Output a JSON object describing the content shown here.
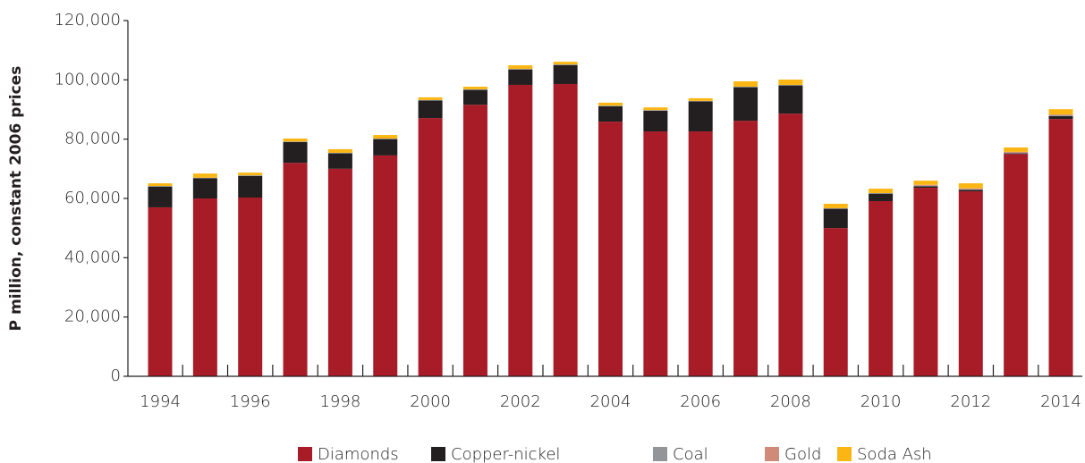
{
  "chart_data": {
    "type": "stacked_bar",
    "y_label": "P million, constant 2006 prices",
    "categories": [
      "1994",
      null,
      "1996",
      null,
      "1998",
      null,
      "2000",
      null,
      "2002",
      null,
      "2004",
      null,
      "2006",
      null,
      "2008",
      null,
      "2010",
      null,
      "2012",
      null,
      "2014"
    ],
    "series": [
      {
        "name": "Diamonds",
        "color": "#a81c27",
        "values": [
          57000,
          60000,
          60300,
          72000,
          70000,
          74500,
          87100,
          91600,
          98300,
          98600,
          85900,
          82600,
          82600,
          86200,
          88600,
          50000,
          59100,
          63600,
          62400,
          75000,
          86800
        ]
      },
      {
        "name": "Copper-nickel",
        "color": "#231f20",
        "values": [
          7000,
          6800,
          7300,
          7000,
          5200,
          5500,
          5900,
          5000,
          5200,
          6400,
          5200,
          7000,
          10100,
          11300,
          9500,
          6500,
          2500,
          500,
          500,
          200,
          1000
        ]
      },
      {
        "name": "Coal",
        "color": "#939598",
        "values": [
          200,
          200,
          200,
          200,
          200,
          200,
          200,
          200,
          200,
          200,
          200,
          200,
          200,
          200,
          200,
          200,
          200,
          200,
          200,
          200,
          200
        ]
      },
      {
        "name": "Gold",
        "color": "#d08a78",
        "values": [
          0,
          0,
          0,
          0,
          0,
          0,
          0,
          0,
          0,
          0,
          0,
          0,
          0,
          0,
          0,
          0,
          0,
          300,
          300,
          300,
          300
        ]
      },
      {
        "name": "Soda Ash",
        "color": "#fbb614",
        "values": [
          900,
          1400,
          900,
          1000,
          1200,
          1200,
          900,
          900,
          1200,
          900,
          1000,
          900,
          900,
          1800,
          1800,
          1500,
          1500,
          1400,
          1700,
          1500,
          1800
        ]
      }
    ],
    "ylim": [
      0,
      120000
    ],
    "yticks": [
      0,
      {
        "value": 20000,
        "label": "20,000"
      },
      {
        "value": 40000,
        "label": "40,000"
      },
      {
        "value": 60000,
        "label": "60,000"
      },
      {
        "value": 80000,
        "label": "80,000"
      },
      {
        "value": 100000,
        "label": "100,000"
      },
      {
        "value": 120000,
        "label": "120,000"
      }
    ],
    "legend": "bottom"
  }
}
